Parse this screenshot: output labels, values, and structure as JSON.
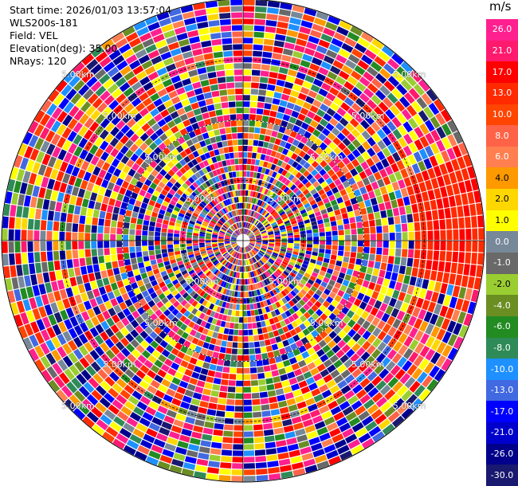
{
  "info": {
    "start_time": "Start time: 2026/01/03 13:57:04",
    "instrument": "WLS200s-181",
    "field": "Field: VEL",
    "elevation": "Elevation(deg): 35.00",
    "nrays": "NRays: 120"
  },
  "colorbar": {
    "unit": "m/s",
    "levels": [
      {
        "label": "26.0",
        "color": "#ff2090"
      },
      {
        "label": "21.0",
        "color": "#ff1a6e"
      },
      {
        "label": "17.0",
        "color": "#ff0000"
      },
      {
        "label": "13.0",
        "color": "#ff2a00"
      },
      {
        "label": "10.0",
        "color": "#ff4500"
      },
      {
        "label": "8.0",
        "color": "#ff6347"
      },
      {
        "label": "6.0",
        "color": "#ff7f50"
      },
      {
        "label": "4.0",
        "color": "#ff9900"
      },
      {
        "label": "2.0",
        "color": "#ffd700"
      },
      {
        "label": "1.0",
        "color": "#ffff00"
      },
      {
        "label": "0.0",
        "color": "#778899"
      },
      {
        "label": "-1.0",
        "color": "#696969"
      },
      {
        "label": "-2.0",
        "color": "#9acd32"
      },
      {
        "label": "-4.0",
        "color": "#6b8e23"
      },
      {
        "label": "-6.0",
        "color": "#228b22"
      },
      {
        "label": "-8.0",
        "color": "#2e8b57"
      },
      {
        "label": "-10.0",
        "color": "#1e90ff"
      },
      {
        "label": "-13.0",
        "color": "#4169e1"
      },
      {
        "label": "-17.0",
        "color": "#0000ff"
      },
      {
        "label": "-21.0",
        "color": "#0000cd"
      },
      {
        "label": "-26.0",
        "color": "#00008b"
      },
      {
        "label": "-30.0",
        "color": "#191970"
      }
    ]
  },
  "range_label": "5.00km"
}
